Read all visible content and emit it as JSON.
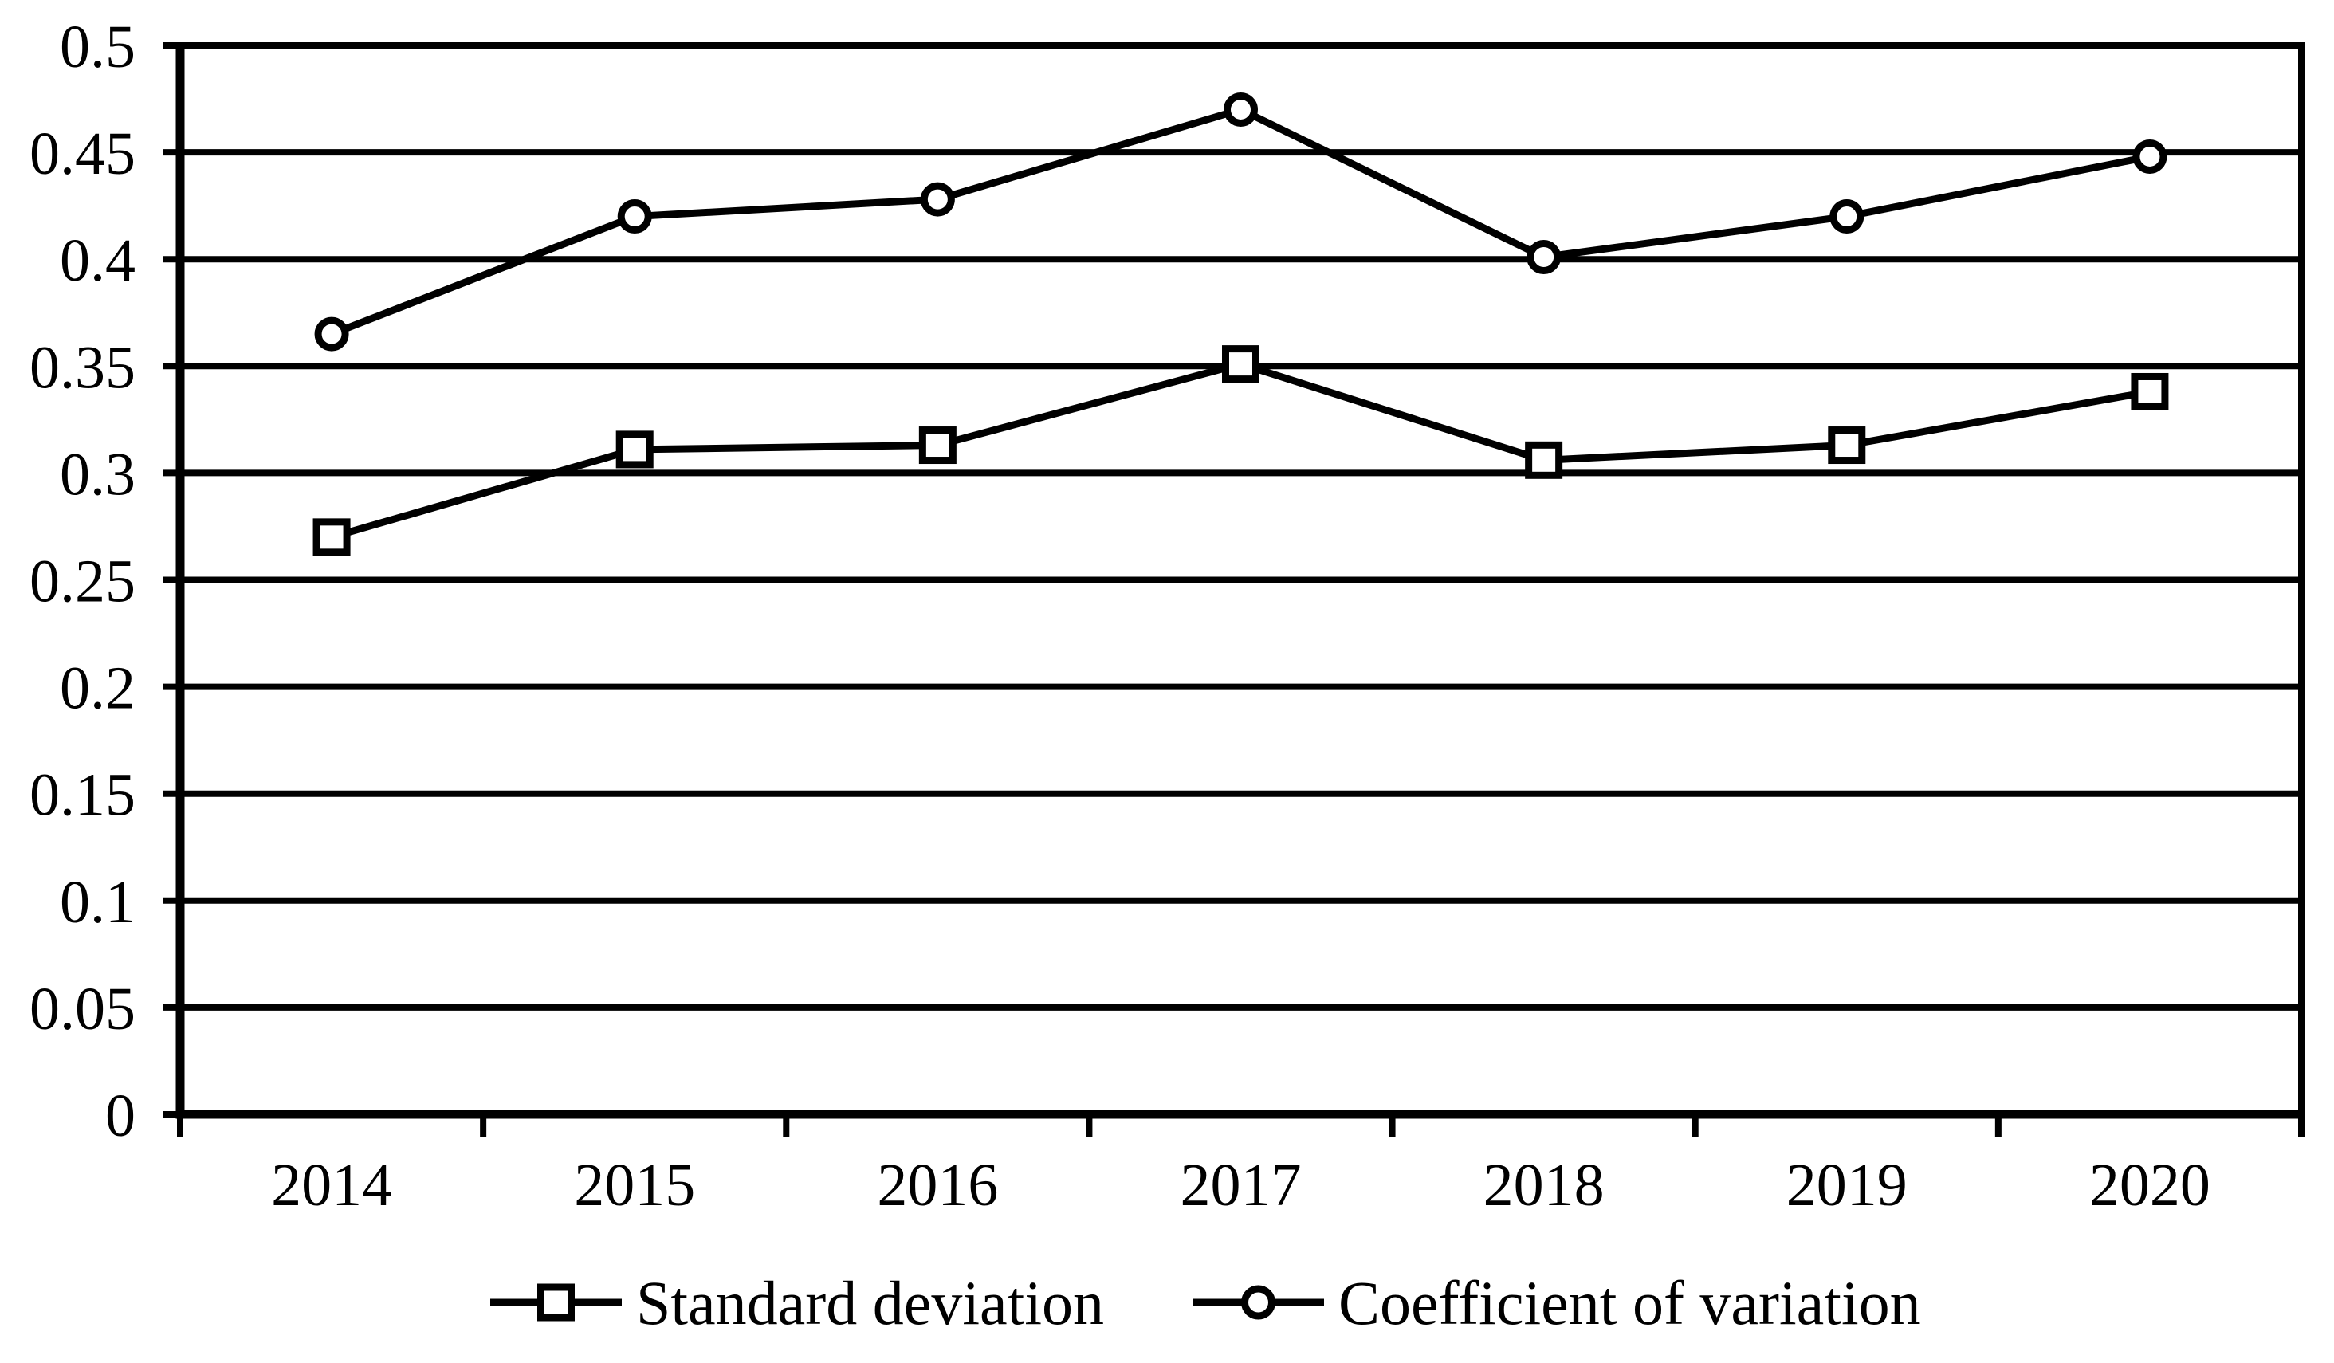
{
  "figure": {
    "background": "#ffffff",
    "ink_color": "#000000",
    "marker_fill": "#ffffff"
  },
  "chart_data": {
    "type": "line",
    "title": "",
    "xlabel": "",
    "ylabel": "",
    "categories": [
      "2014",
      "2015",
      "2016",
      "2017",
      "2018",
      "2019",
      "2020"
    ],
    "series": [
      {
        "name": "Standard deviation",
        "marker": "square",
        "values": [
          0.27,
          0.311,
          0.313,
          0.351,
          0.306,
          0.313,
          0.338
        ]
      },
      {
        "name": "Coefficient of variation",
        "marker": "circle",
        "values": [
          0.365,
          0.42,
          0.428,
          0.47,
          0.401,
          0.42,
          0.448
        ]
      }
    ],
    "ylim": [
      0,
      0.5
    ],
    "y_tick_step": 0.05,
    "y_tick_labels": [
      "0",
      "0.05",
      "0.1",
      "0.15",
      "0.2",
      "0.25",
      "0.3",
      "0.35",
      "0.4",
      "0.45",
      "0.5"
    ],
    "grid": "horizontal",
    "legend_position": "bottom",
    "line_color": "#000000",
    "marker_fill": "#ffffff"
  }
}
